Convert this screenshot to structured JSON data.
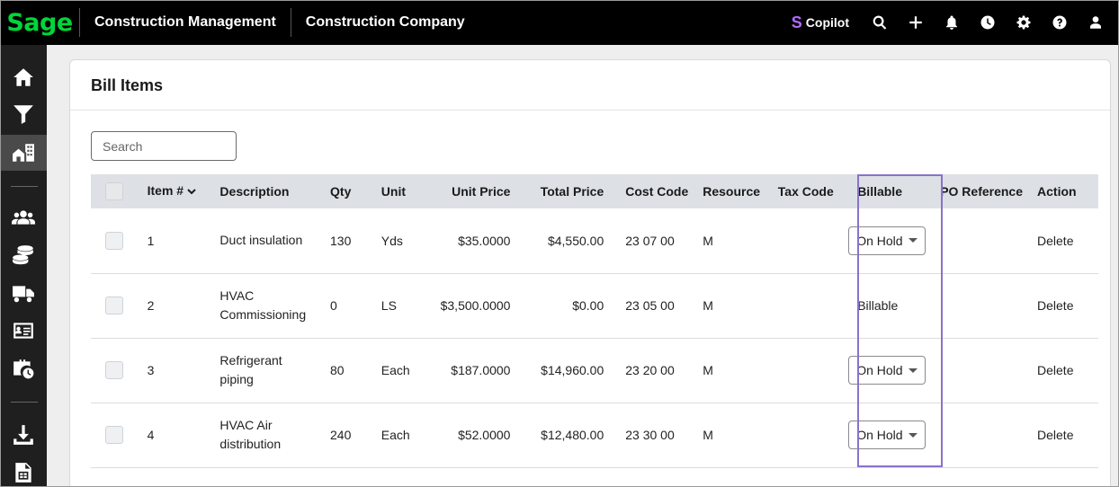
{
  "header": {
    "logo_text": "Sage",
    "app_title": "Construction Management",
    "company": "Construction Company",
    "copilot_label": "Copilot",
    "copilot_s": "S",
    "icons": [
      "search-icon",
      "plus-icon",
      "bell-icon",
      "clock-icon",
      "gear-icon",
      "help-icon",
      "user-icon"
    ]
  },
  "sidebar": {
    "items": [
      "home-icon",
      "filter-icon",
      "buildings-icon",
      "people-icon",
      "coins-icon",
      "truck-icon",
      "id-card-icon",
      "briefcase-clock-icon",
      "download-icon",
      "spreadsheet-icon"
    ],
    "active": "buildings-icon"
  },
  "panel": {
    "title": "Bill Items",
    "search_placeholder": "Search"
  },
  "table": {
    "columns": [
      "Item #",
      "Description",
      "Qty",
      "Unit",
      "Unit Price",
      "Total Price",
      "Cost Code",
      "Resource",
      "Tax Code",
      "Billable",
      "PO Reference",
      "Action"
    ],
    "rows": [
      {
        "item": "1",
        "description": "Duct insulation",
        "qty": "130",
        "unit": "Yds",
        "unit_price": "$35.0000",
        "total_price": "$4,550.00",
        "cost_code": "23 07 00",
        "resource": "M",
        "tax_code": "",
        "billable": "On Hold",
        "billable_dropdown": true,
        "po_reference": "",
        "action": "Delete"
      },
      {
        "item": "2",
        "description": "HVAC Commissioning",
        "qty": "0",
        "unit": "LS",
        "unit_price": "$3,500.0000",
        "total_price": "$0.00",
        "cost_code": "23 05 00",
        "resource": "M",
        "tax_code": "",
        "billable": "Billable",
        "billable_dropdown": false,
        "po_reference": "",
        "action": "Delete"
      },
      {
        "item": "3",
        "description": "Refrigerant piping",
        "qty": "80",
        "unit": "Each",
        "unit_price": "$187.0000",
        "total_price": "$14,960.00",
        "cost_code": "23 20 00",
        "resource": "M",
        "tax_code": "",
        "billable": "On Hold",
        "billable_dropdown": true,
        "po_reference": "",
        "action": "Delete"
      },
      {
        "item": "4",
        "description": "HVAC Air distribution",
        "qty": "240",
        "unit": "Each",
        "unit_price": "$52.0000",
        "total_price": "$12,480.00",
        "cost_code": "23 30 00",
        "resource": "M",
        "tax_code": "",
        "billable": "On Hold",
        "billable_dropdown": true,
        "po_reference": "",
        "action": "Delete"
      }
    ]
  },
  "colors": {
    "brand_green": "#00d639",
    "copilot_purple": "#b26cff",
    "highlight": "#8a72c9",
    "header_row": "#dde1e6"
  }
}
